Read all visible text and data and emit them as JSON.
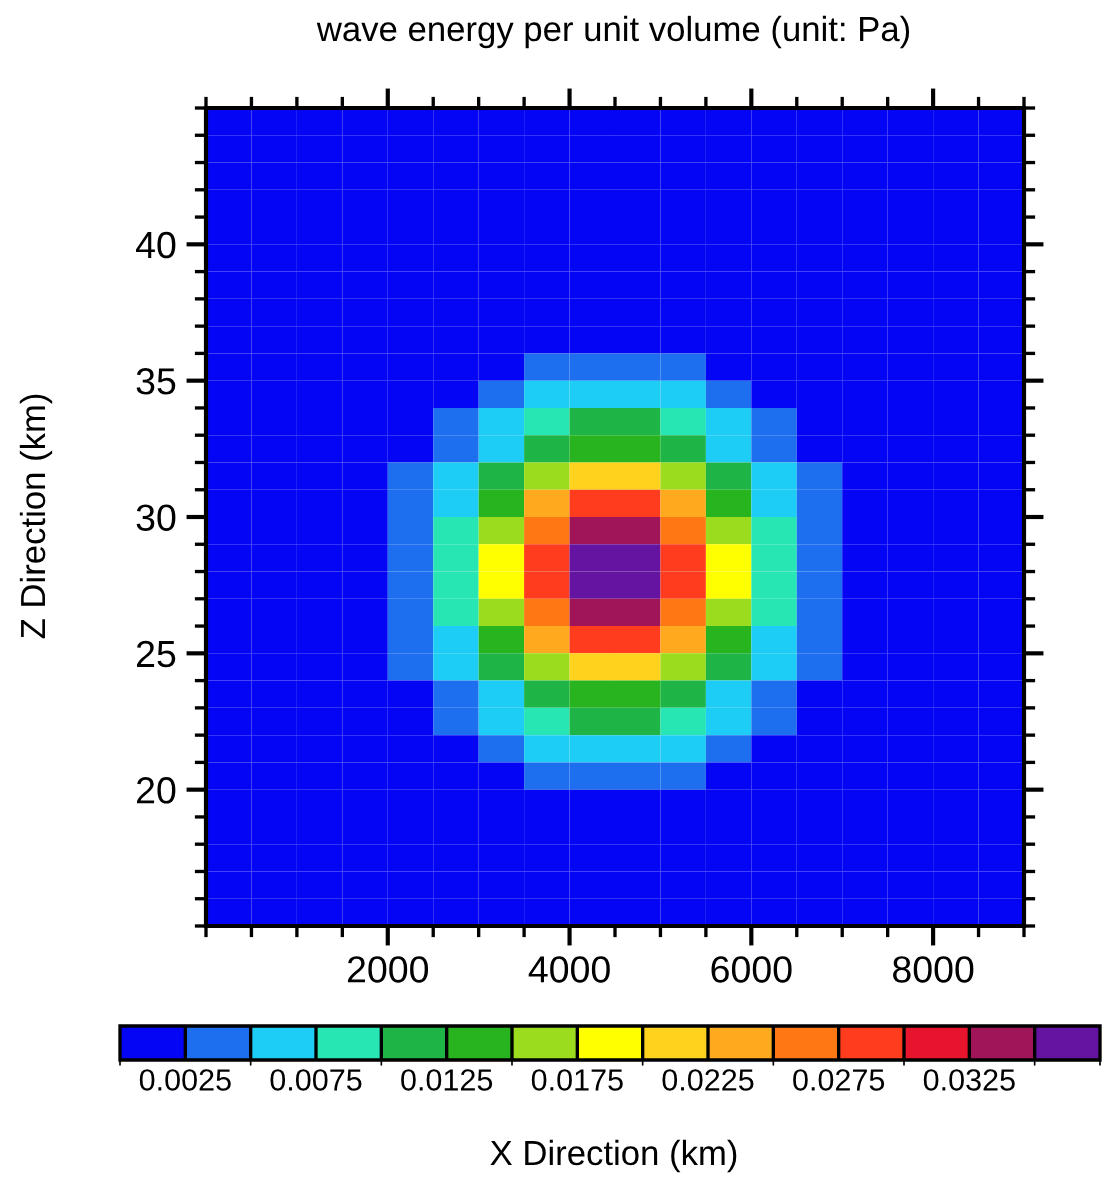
{
  "chart_data": {
    "type": "heatmap",
    "title": "wave energy per unit volume (unit: Pa)",
    "xlabel": "X Direction (km)",
    "ylabel": "Z Direction (km)",
    "x": [
      250,
      750,
      1250,
      1750,
      2250,
      2750,
      3250,
      3750,
      4250,
      4750,
      5250,
      5750,
      6250,
      6750,
      7250,
      7750,
      8250,
      8750
    ],
    "y": [
      44.5,
      43.5,
      42.5,
      41.5,
      40.5,
      39.5,
      38.5,
      37.5,
      36.5,
      35.5,
      34.5,
      33.5,
      32.5,
      31.5,
      30.5,
      29.5,
      28.5,
      27.5,
      26.5,
      25.5,
      24.5,
      23.5,
      22.5,
      21.5,
      20.5,
      19.5,
      18.5,
      17.5,
      16.5,
      15.5
    ],
    "xlim": [
      0,
      9000
    ],
    "ylim": [
      15,
      45
    ],
    "xticks": [
      2000,
      4000,
      6000,
      8000
    ],
    "yticks": [
      20,
      25,
      30,
      35,
      40
    ],
    "clim": [
      0,
      0.0375
    ],
    "cticks": [
      0.0025,
      0.0075,
      0.0125,
      0.0175,
      0.0225,
      0.0275,
      0.0325
    ],
    "colors": [
      "#0505f5",
      "#1e6ef0",
      "#1ecdf5",
      "#28e6b4",
      "#1eb446",
      "#28b41e",
      "#9bdc1e",
      "#ffff00",
      "#ffd21e",
      "#ffaa1e",
      "#ff7814",
      "#ff3c1e",
      "#e6142d",
      "#a0145a",
      "#6414a0"
    ],
    "cells": [
      [
        0.00125,
        0.00125,
        0.00125,
        0.00125,
        0.00125,
        0.00125,
        0.00125,
        0.00125,
        0.00125,
        0.00125,
        0.00125,
        0.00125,
        0.00125,
        0.00125,
        0.00125,
        0.00125,
        0.00125,
        0.00125
      ],
      [
        0.00125,
        0.00125,
        0.00125,
        0.00125,
        0.00125,
        0.00125,
        0.00125,
        0.00125,
        0.00125,
        0.00125,
        0.00125,
        0.00125,
        0.00125,
        0.00125,
        0.00125,
        0.00125,
        0.00125,
        0.00125
      ],
      [
        0.00125,
        0.00125,
        0.00125,
        0.00125,
        0.00125,
        0.00125,
        0.00125,
        0.00125,
        0.00125,
        0.00125,
        0.00125,
        0.00125,
        0.00125,
        0.00125,
        0.00125,
        0.00125,
        0.00125,
        0.00125
      ],
      [
        0.00125,
        0.00125,
        0.00125,
        0.00125,
        0.00125,
        0.00125,
        0.00125,
        0.00125,
        0.00125,
        0.00125,
        0.00125,
        0.00125,
        0.00125,
        0.00125,
        0.00125,
        0.00125,
        0.00125,
        0.00125
      ],
      [
        0.00125,
        0.00125,
        0.00125,
        0.00125,
        0.00125,
        0.00125,
        0.00125,
        0.00125,
        0.00125,
        0.00125,
        0.00125,
        0.00125,
        0.00125,
        0.00125,
        0.00125,
        0.00125,
        0.00125,
        0.00125
      ],
      [
        0.00125,
        0.00125,
        0.00125,
        0.00125,
        0.00125,
        0.00125,
        0.00125,
        0.00125,
        0.00125,
        0.00125,
        0.00125,
        0.00125,
        0.00125,
        0.00125,
        0.00125,
        0.00125,
        0.00125,
        0.00125
      ],
      [
        0.00125,
        0.00125,
        0.00125,
        0.00125,
        0.00125,
        0.00125,
        0.00125,
        0.00125,
        0.00125,
        0.00125,
        0.00125,
        0.00125,
        0.00125,
        0.00125,
        0.00125,
        0.00125,
        0.00125,
        0.00125
      ],
      [
        0.00125,
        0.00125,
        0.00125,
        0.00125,
        0.00125,
        0.00125,
        0.00125,
        0.00125,
        0.00125,
        0.00125,
        0.00125,
        0.00125,
        0.00125,
        0.00125,
        0.00125,
        0.00125,
        0.00125,
        0.00125
      ],
      [
        0.00125,
        0.00125,
        0.00125,
        0.00125,
        0.00125,
        0.00125,
        0.00125,
        0.00125,
        0.00125,
        0.00125,
        0.00125,
        0.00125,
        0.00125,
        0.00125,
        0.00125,
        0.00125,
        0.00125,
        0.00125
      ],
      [
        0.00125,
        0.00125,
        0.00125,
        0.00125,
        0.00125,
        0.00125,
        0.00125,
        0.00375,
        0.00375,
        0.00375,
        0.00375,
        0.00125,
        0.00125,
        0.00125,
        0.00125,
        0.00125,
        0.00125,
        0.00125
      ],
      [
        0.00125,
        0.00125,
        0.00125,
        0.00125,
        0.00125,
        0.00125,
        0.00375,
        0.00625,
        0.00625,
        0.00625,
        0.00625,
        0.00375,
        0.00125,
        0.00125,
        0.00125,
        0.00125,
        0.00125,
        0.00125
      ],
      [
        0.00125,
        0.00125,
        0.00125,
        0.00125,
        0.00125,
        0.00375,
        0.00625,
        0.00875,
        0.01125,
        0.01125,
        0.00875,
        0.00625,
        0.00375,
        0.00125,
        0.00125,
        0.00125,
        0.00125,
        0.00125
      ],
      [
        0.00125,
        0.00125,
        0.00125,
        0.00125,
        0.00125,
        0.00375,
        0.00625,
        0.01125,
        0.01375,
        0.01375,
        0.01125,
        0.00625,
        0.00375,
        0.00125,
        0.00125,
        0.00125,
        0.00125,
        0.00125
      ],
      [
        0.00125,
        0.00125,
        0.00125,
        0.00125,
        0.00375,
        0.00625,
        0.01125,
        0.01625,
        0.02125,
        0.02125,
        0.01625,
        0.01125,
        0.00625,
        0.00375,
        0.00125,
        0.00125,
        0.00125,
        0.00125
      ],
      [
        0.00125,
        0.00125,
        0.00125,
        0.00125,
        0.00375,
        0.00625,
        0.01375,
        0.02375,
        0.02875,
        0.02875,
        0.02375,
        0.01375,
        0.00625,
        0.00375,
        0.00125,
        0.00125,
        0.00125,
        0.00125
      ],
      [
        0.00125,
        0.00125,
        0.00125,
        0.00125,
        0.00375,
        0.00875,
        0.01625,
        0.02625,
        0.03375,
        0.03375,
        0.02625,
        0.01625,
        0.00875,
        0.00375,
        0.00125,
        0.00125,
        0.00125,
        0.00125
      ],
      [
        0.00125,
        0.00125,
        0.00125,
        0.00125,
        0.00375,
        0.00875,
        0.01875,
        0.02875,
        0.03625,
        0.03625,
        0.02875,
        0.01875,
        0.00875,
        0.00375,
        0.00125,
        0.00125,
        0.00125,
        0.00125
      ],
      [
        0.00125,
        0.00125,
        0.00125,
        0.00125,
        0.00375,
        0.00875,
        0.01875,
        0.02875,
        0.03625,
        0.03625,
        0.02875,
        0.01875,
        0.00875,
        0.00375,
        0.00125,
        0.00125,
        0.00125,
        0.00125
      ],
      [
        0.00125,
        0.00125,
        0.00125,
        0.00125,
        0.00375,
        0.00875,
        0.01625,
        0.02625,
        0.03375,
        0.03375,
        0.02625,
        0.01625,
        0.00875,
        0.00375,
        0.00125,
        0.00125,
        0.00125,
        0.00125
      ],
      [
        0.00125,
        0.00125,
        0.00125,
        0.00125,
        0.00375,
        0.00625,
        0.01375,
        0.02375,
        0.02875,
        0.02875,
        0.02375,
        0.01375,
        0.00625,
        0.00375,
        0.00125,
        0.00125,
        0.00125,
        0.00125
      ],
      [
        0.00125,
        0.00125,
        0.00125,
        0.00125,
        0.00375,
        0.00625,
        0.01125,
        0.01625,
        0.02125,
        0.02125,
        0.01625,
        0.01125,
        0.00625,
        0.00375,
        0.00125,
        0.00125,
        0.00125,
        0.00125
      ],
      [
        0.00125,
        0.00125,
        0.00125,
        0.00125,
        0.00125,
        0.00375,
        0.00625,
        0.01125,
        0.01375,
        0.01375,
        0.01125,
        0.00625,
        0.00375,
        0.00125,
        0.00125,
        0.00125,
        0.00125,
        0.00125
      ],
      [
        0.00125,
        0.00125,
        0.00125,
        0.00125,
        0.00125,
        0.00375,
        0.00625,
        0.00875,
        0.01125,
        0.01125,
        0.00875,
        0.00625,
        0.00375,
        0.00125,
        0.00125,
        0.00125,
        0.00125,
        0.00125
      ],
      [
        0.00125,
        0.00125,
        0.00125,
        0.00125,
        0.00125,
        0.00125,
        0.00375,
        0.00625,
        0.00625,
        0.00625,
        0.00625,
        0.00375,
        0.00125,
        0.00125,
        0.00125,
        0.00125,
        0.00125,
        0.00125
      ],
      [
        0.00125,
        0.00125,
        0.00125,
        0.00125,
        0.00125,
        0.00125,
        0.00125,
        0.00375,
        0.00375,
        0.00375,
        0.00375,
        0.00125,
        0.00125,
        0.00125,
        0.00125,
        0.00125,
        0.00125,
        0.00125
      ],
      [
        0.00125,
        0.00125,
        0.00125,
        0.00125,
        0.00125,
        0.00125,
        0.00125,
        0.00125,
        0.00125,
        0.00125,
        0.00125,
        0.00125,
        0.00125,
        0.00125,
        0.00125,
        0.00125,
        0.00125,
        0.00125
      ],
      [
        0.00125,
        0.00125,
        0.00125,
        0.00125,
        0.00125,
        0.00125,
        0.00125,
        0.00125,
        0.00125,
        0.00125,
        0.00125,
        0.00125,
        0.00125,
        0.00125,
        0.00125,
        0.00125,
        0.00125,
        0.00125
      ],
      [
        0.00125,
        0.00125,
        0.00125,
        0.00125,
        0.00125,
        0.00125,
        0.00125,
        0.00125,
        0.00125,
        0.00125,
        0.00125,
        0.00125,
        0.00125,
        0.00125,
        0.00125,
        0.00125,
        0.00125,
        0.00125
      ],
      [
        0.00125,
        0.00125,
        0.00125,
        0.00125,
        0.00125,
        0.00125,
        0.00125,
        0.00125,
        0.00125,
        0.00125,
        0.00125,
        0.00125,
        0.00125,
        0.00125,
        0.00125,
        0.00125,
        0.00125,
        0.00125
      ],
      [
        0.00125,
        0.00125,
        0.00125,
        0.00125,
        0.00125,
        0.00125,
        0.00125,
        0.00125,
        0.00125,
        0.00125,
        0.00125,
        0.00125,
        0.00125,
        0.00125,
        0.00125,
        0.00125,
        0.00125,
        0.00125
      ]
    ]
  }
}
